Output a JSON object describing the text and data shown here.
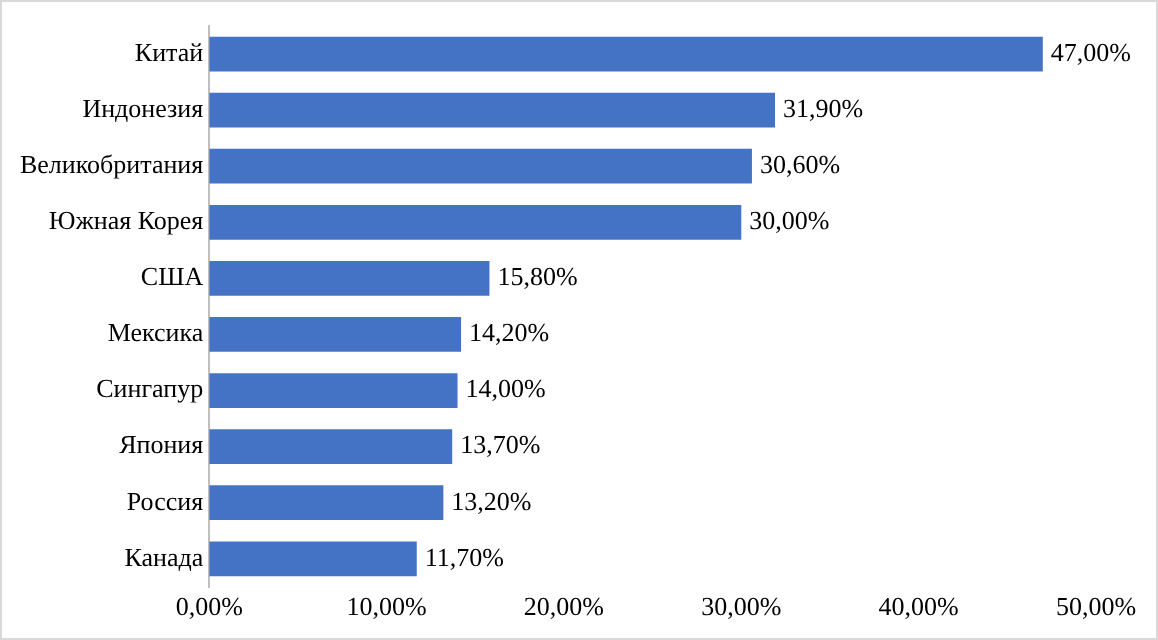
{
  "chart_data": {
    "type": "bar",
    "orientation": "horizontal",
    "categories": [
      "Китай",
      "Индонезия",
      "Великобритания",
      "Южная Корея",
      "США",
      "Мексика",
      "Сингапур",
      "Япония",
      "Россия",
      "Канада"
    ],
    "values": [
      47.0,
      31.9,
      30.6,
      30.0,
      15.8,
      14.2,
      14.0,
      13.7,
      13.2,
      11.7
    ],
    "value_labels": [
      "47,00%",
      "31,90%",
      "30,60%",
      "30,00%",
      "15,80%",
      "14,20%",
      "14,00%",
      "13,70%",
      "13,20%",
      "11,70%"
    ],
    "color": "#4472c4",
    "xlim": [
      0,
      50
    ],
    "xticks": [
      {
        "value": 0,
        "label": "0,00%"
      },
      {
        "value": 10,
        "label": "10,00%"
      },
      {
        "value": 20,
        "label": "20,00%"
      },
      {
        "value": 30,
        "label": "30,00%"
      },
      {
        "value": 40,
        "label": "40,00%"
      },
      {
        "value": 50,
        "label": "50,00%"
      }
    ],
    "grid": false,
    "legend": false
  }
}
